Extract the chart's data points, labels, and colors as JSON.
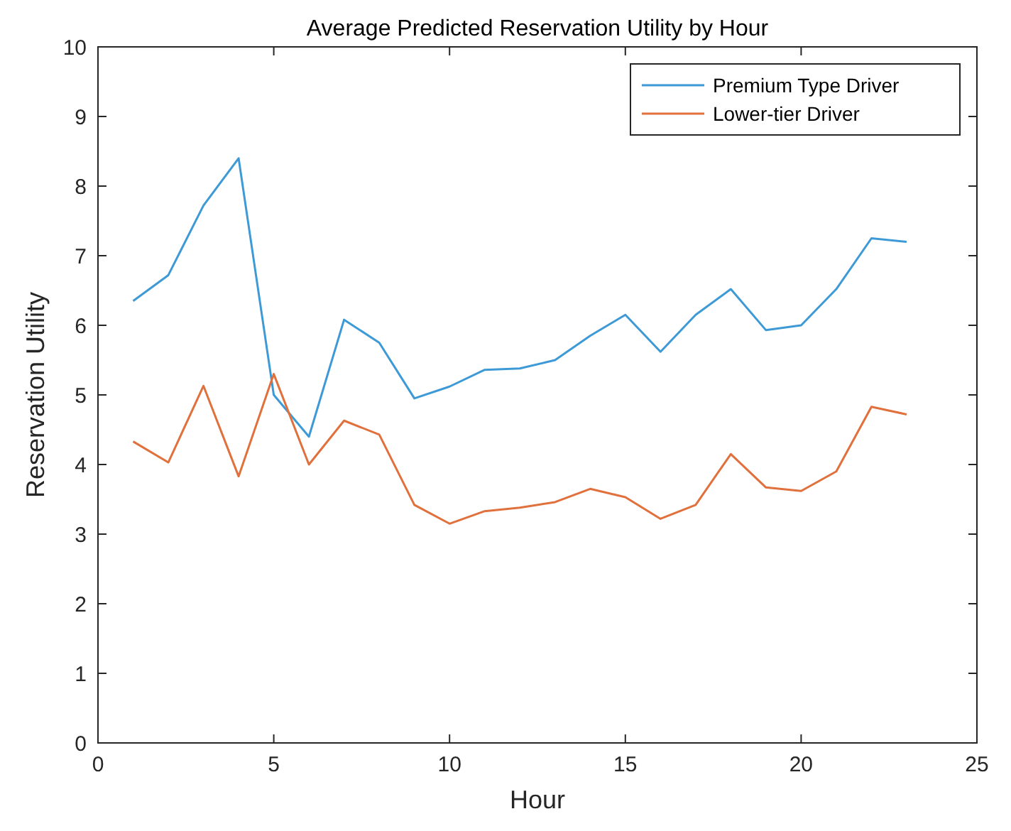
{
  "chart_data": {
    "type": "line",
    "title": "Average Predicted Reservation Utility by Hour",
    "xlabel": "Hour",
    "ylabel": "Reservation Utility",
    "x": [
      1,
      2,
      3,
      4,
      5,
      6,
      7,
      8,
      9,
      10,
      11,
      12,
      13,
      14,
      15,
      16,
      17,
      18,
      19,
      20,
      21,
      22,
      23
    ],
    "series": [
      {
        "name": "Premium Type Driver",
        "color": "#3d9ad6",
        "values": [
          6.35,
          6.72,
          7.72,
          8.4,
          5.0,
          4.4,
          6.08,
          5.75,
          4.95,
          5.12,
          5.36,
          5.38,
          5.5,
          5.85,
          6.15,
          5.62,
          6.15,
          6.52,
          5.93,
          6.0,
          6.52,
          7.25,
          7.2
        ]
      },
      {
        "name": "Lower-tier Driver",
        "color": "#e0703c",
        "values": [
          4.33,
          4.03,
          5.13,
          3.83,
          5.3,
          4.0,
          4.63,
          4.43,
          3.42,
          3.15,
          3.33,
          3.38,
          3.46,
          3.65,
          3.53,
          3.22,
          3.42,
          4.15,
          3.67,
          3.62,
          3.9,
          4.83,
          4.72
        ]
      }
    ],
    "xlim": [
      0,
      25
    ],
    "xticks": [
      0,
      5,
      10,
      15,
      20,
      25
    ],
    "ylim": [
      0,
      10
    ],
    "yticks": [
      0,
      1,
      2,
      3,
      4,
      5,
      6,
      7,
      8,
      9,
      10
    ],
    "legend": "top right",
    "grid": false,
    "marker": "none",
    "line_style": "solid"
  }
}
